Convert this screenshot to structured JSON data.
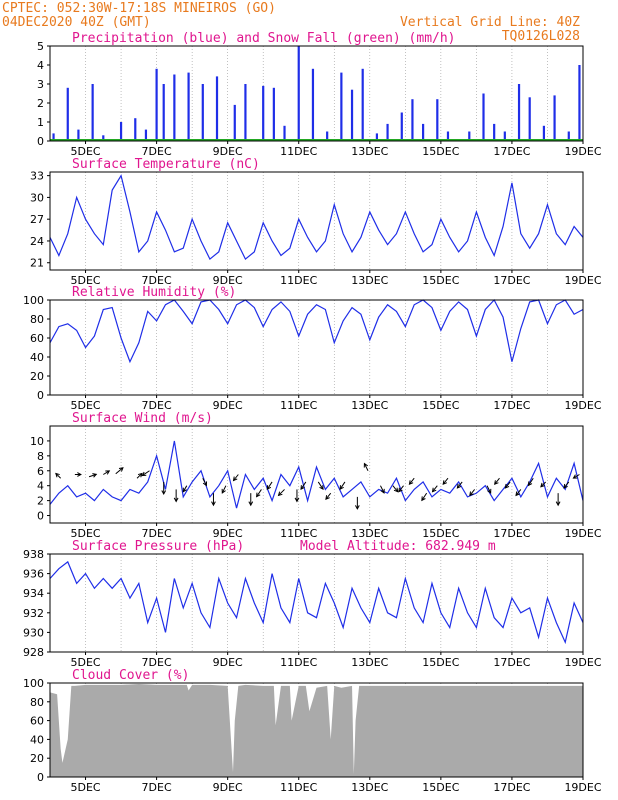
{
  "header": {
    "line1": "CPTEC:   052:30W-17:18S  MINEIROS (GO)",
    "line2": "04DEC2020 40Z (GMT)",
    "grid_note": "Vertical Grid Line: 40Z",
    "code": "TQ0126L028",
    "text_color": "#e87a1e",
    "title_color": "#e0168f"
  },
  "x_ticks": [
    "5DEC",
    "7DEC",
    "9DEC",
    "11DEC",
    "13DEC",
    "15DEC",
    "17DEC",
    "19DEC"
  ],
  "colors": {
    "blue": "#1f2ee8",
    "green": "#22a822",
    "gray": "#aaaaaa"
  },
  "chart_data": [
    {
      "type": "bar",
      "title": "Precipitation (blue) and Snow Fall (green) (mm/h)",
      "xlabel": "",
      "ylabel": "",
      "ylim": [
        0,
        5
      ],
      "yticks": [
        "0",
        "1",
        "2",
        "3",
        "4",
        "5"
      ],
      "x": [
        4.1,
        4.5,
        4.8,
        5.2,
        5.5,
        6.0,
        6.4,
        6.7,
        7.0,
        7.2,
        7.5,
        7.9,
        8.3,
        8.7,
        9.2,
        9.5,
        10.0,
        10.3,
        10.6,
        11.0,
        11.4,
        11.8,
        12.2,
        12.5,
        12.8,
        13.2,
        13.5,
        13.9,
        14.2,
        14.5,
        14.9,
        15.2,
        15.8,
        16.2,
        16.5,
        16.8,
        17.2,
        17.5,
        17.9,
        18.2,
        18.6,
        18.9
      ],
      "series": [
        {
          "name": "Precipitation",
          "values": [
            0.4,
            2.8,
            0.6,
            3.0,
            0.3,
            1.0,
            1.2,
            0.6,
            3.8,
            3.0,
            3.5,
            3.6,
            3.0,
            3.4,
            1.9,
            3.0,
            2.9,
            2.8,
            0.8,
            5.0,
            3.8,
            0.5,
            3.6,
            2.7,
            3.8,
            0.4,
            0.9,
            1.5,
            2.2,
            0.9,
            2.2,
            0.5,
            0.5,
            2.5,
            0.9,
            0.5,
            3.0,
            2.3,
            0.8,
            2.4,
            0.5,
            4.0
          ]
        },
        {
          "name": "Snow Fall",
          "values": [
            0,
            0,
            0,
            0,
            0,
            0,
            0,
            0,
            0,
            0,
            0,
            0,
            0,
            0,
            0,
            0,
            0,
            0,
            0,
            0,
            0,
            0,
            0,
            0,
            0,
            0,
            0,
            0,
            0,
            0,
            0,
            0,
            0,
            0,
            0,
            0,
            0,
            0,
            0,
            0,
            0,
            0
          ]
        }
      ]
    },
    {
      "type": "line",
      "title": "Surface Temperature (nC)",
      "xlabel": "",
      "ylabel": "",
      "ylim": [
        20,
        33.5
      ],
      "yticks": [
        "21",
        "24",
        "27",
        "30",
        "33"
      ],
      "x": [
        4.0,
        4.25,
        4.5,
        4.75,
        5.0,
        5.25,
        5.5,
        5.75,
        6.0,
        6.25,
        6.5,
        6.75,
        7.0,
        7.25,
        7.5,
        7.75,
        8.0,
        8.25,
        8.5,
        8.75,
        9.0,
        9.25,
        9.5,
        9.75,
        10.0,
        10.25,
        10.5,
        10.75,
        11.0,
        11.25,
        11.5,
        11.75,
        12.0,
        12.25,
        12.5,
        12.75,
        13.0,
        13.25,
        13.5,
        13.75,
        14.0,
        14.25,
        14.5,
        14.75,
        15.0,
        15.25,
        15.5,
        15.75,
        16.0,
        16.25,
        16.5,
        16.75,
        17.0,
        17.25,
        17.5,
        17.75,
        18.0,
        18.25,
        18.5,
        18.75,
        19.0
      ],
      "series": [
        {
          "name": "",
          "values": [
            24.5,
            22.0,
            25.0,
            30.0,
            27.0,
            25.0,
            23.5,
            31.0,
            33.0,
            28.0,
            22.5,
            24.0,
            28.0,
            25.5,
            22.5,
            23.0,
            27.0,
            24.0,
            21.5,
            22.5,
            26.5,
            24.0,
            21.5,
            22.5,
            26.5,
            24.0,
            22.0,
            23.0,
            27.0,
            24.5,
            22.5,
            24.0,
            29.0,
            25.0,
            22.5,
            24.5,
            28.0,
            25.5,
            23.5,
            25.0,
            28.0,
            25.0,
            22.5,
            23.5,
            27.0,
            24.5,
            22.5,
            24.0,
            28.0,
            24.5,
            22.0,
            26.0,
            32.0,
            25.0,
            23.0,
            25.0,
            29.0,
            25.0,
            23.5,
            26.0,
            24.5
          ]
        }
      ]
    },
    {
      "type": "line",
      "title": "Relative Humidity (%)",
      "xlabel": "",
      "ylabel": "",
      "ylim": [
        0,
        100
      ],
      "yticks": [
        "0",
        "20",
        "40",
        "60",
        "80",
        "100"
      ],
      "x": [
        4.0,
        4.25,
        4.5,
        4.75,
        5.0,
        5.25,
        5.5,
        5.75,
        6.0,
        6.25,
        6.5,
        6.75,
        7.0,
        7.25,
        7.5,
        7.75,
        8.0,
        8.25,
        8.5,
        8.75,
        9.0,
        9.25,
        9.5,
        9.75,
        10.0,
        10.25,
        10.5,
        10.75,
        11.0,
        11.25,
        11.5,
        11.75,
        12.0,
        12.25,
        12.5,
        12.75,
        13.0,
        13.25,
        13.5,
        13.75,
        14.0,
        14.25,
        14.5,
        14.75,
        15.0,
        15.25,
        15.5,
        15.75,
        16.0,
        16.25,
        16.5,
        16.75,
        17.0,
        17.25,
        17.5,
        17.75,
        18.0,
        18.25,
        18.5,
        18.75,
        19.0
      ],
      "series": [
        {
          "name": "",
          "values": [
            55,
            72,
            75,
            68,
            50,
            62,
            90,
            92,
            60,
            35,
            55,
            88,
            78,
            95,
            100,
            88,
            75,
            98,
            100,
            90,
            75,
            95,
            100,
            92,
            72,
            90,
            98,
            88,
            62,
            85,
            95,
            90,
            55,
            78,
            92,
            85,
            58,
            82,
            95,
            88,
            72,
            95,
            100,
            92,
            68,
            88,
            98,
            90,
            62,
            90,
            100,
            82,
            35,
            70,
            98,
            100,
            75,
            95,
            100,
            85,
            90
          ]
        }
      ]
    },
    {
      "type": "line",
      "title": "Surface Wind (m/s)",
      "xlabel": "",
      "ylabel": "",
      "ylim": [
        -1,
        12
      ],
      "yticks": [
        "0",
        "2",
        "4",
        "6",
        "8",
        "10"
      ],
      "x": [
        4.0,
        4.25,
        4.5,
        4.75,
        5.0,
        5.25,
        5.5,
        5.75,
        6.0,
        6.25,
        6.5,
        6.75,
        7.0,
        7.25,
        7.5,
        7.75,
        8.0,
        8.25,
        8.5,
        8.75,
        9.0,
        9.25,
        9.5,
        9.75,
        10.0,
        10.25,
        10.5,
        10.75,
        11.0,
        11.25,
        11.5,
        11.75,
        12.0,
        12.25,
        12.5,
        12.75,
        13.0,
        13.25,
        13.5,
        13.75,
        14.0,
        14.25,
        14.5,
        14.75,
        15.0,
        15.25,
        15.5,
        15.75,
        16.0,
        16.25,
        16.5,
        16.75,
        17.0,
        17.25,
        17.5,
        17.75,
        18.0,
        18.25,
        18.5,
        18.75,
        19.0
      ],
      "series": [
        {
          "name": "",
          "values": [
            1.5,
            3.0,
            4.0,
            2.5,
            3.0,
            2.0,
            3.5,
            2.5,
            2.0,
            3.5,
            3.0,
            4.5,
            8.0,
            3.5,
            10.0,
            2.5,
            4.5,
            6.0,
            2.5,
            4.0,
            6.0,
            1.0,
            5.5,
            3.5,
            5.0,
            2.0,
            5.5,
            4.0,
            6.5,
            2.0,
            6.5,
            3.5,
            5.0,
            2.5,
            3.5,
            4.5,
            2.5,
            3.5,
            3.0,
            5.0,
            2.0,
            3.5,
            4.5,
            2.5,
            3.5,
            3.0,
            4.5,
            2.5,
            3.0,
            4.0,
            2.0,
            3.5,
            5.0,
            2.5,
            4.5,
            7.0,
            2.5,
            5.0,
            3.5,
            7.0,
            2.0
          ]
        }
      ],
      "arrows": {
        "x": [
          4.3,
          4.7,
          5.1,
          5.5,
          5.85,
          6.45,
          6.8,
          7.2,
          7.55,
          7.85,
          8.3,
          8.6,
          8.95,
          9.3,
          9.65,
          9.95,
          10.25,
          10.6,
          10.95,
          11.2,
          11.55,
          11.9,
          12.3,
          12.65,
          12.95,
          13.3,
          13.65,
          13.95,
          14.25,
          14.6,
          14.9,
          15.2,
          15.6,
          15.95,
          16.3,
          16.65,
          16.95,
          17.25,
          17.6,
          17.95,
          18.3,
          18.6,
          18.9
        ],
        "y": [
          5.0,
          5.5,
          5.2,
          5.5,
          5.6,
          5.0,
          6.0,
          4.5,
          3.5,
          4.0,
          5.0,
          3.0,
          4.0,
          5.5,
          3.0,
          3.5,
          4.5,
          3.5,
          3.5,
          4.5,
          4.5,
          3.0,
          4.5,
          2.5,
          6.0,
          4.0,
          4.0,
          4.0,
          5.0,
          3.0,
          4.0,
          5.0,
          4.5,
          3.5,
          4.0,
          5.0,
          4.5,
          3.5,
          5.0,
          4.5,
          3.0,
          4.5,
          5.5
        ],
        "u": [
          -0.4,
          0.5,
          0.6,
          0.5,
          0.6,
          0.4,
          -0.6,
          0,
          0,
          -0.3,
          0.3,
          0,
          -0.3,
          -0.4,
          0,
          -0.4,
          -0.4,
          -0.5,
          0,
          -0.4,
          0.4,
          -0.4,
          -0.4,
          0,
          -0.3,
          0.3,
          0.4,
          -0.4,
          -0.4,
          -0.4,
          -0.4,
          -0.4,
          -0.4,
          -0.4,
          0.3,
          -0.4,
          -0.4,
          -0.4,
          -0.4,
          -0.4,
          0,
          -0.4,
          -0.5
        ],
        "v": [
          0.4,
          0,
          0.2,
          0.3,
          0.5,
          0.4,
          -0.4,
          -1.0,
          -1.0,
          -0.5,
          -0.6,
          -1.0,
          -0.6,
          -0.5,
          -1.0,
          -0.6,
          -0.6,
          -0.5,
          -1.0,
          -0.6,
          -0.6,
          -0.5,
          -0.6,
          -1.0,
          0.6,
          -0.6,
          -0.5,
          -0.5,
          -0.5,
          -0.6,
          -0.5,
          -0.5,
          -0.5,
          -0.5,
          -0.6,
          -0.5,
          -0.5,
          -0.5,
          -0.6,
          -0.4,
          -1.0,
          -0.5,
          -0.3
        ]
      }
    },
    {
      "type": "line",
      "title": "Surface Pressure (hPa)",
      "annotation": "Model Altitude: 682.949 m",
      "xlabel": "",
      "ylabel": "",
      "ylim": [
        928,
        938
      ],
      "yticks": [
        "928",
        "930",
        "932",
        "934",
        "936",
        "938"
      ],
      "x": [
        4.0,
        4.25,
        4.5,
        4.75,
        5.0,
        5.25,
        5.5,
        5.75,
        6.0,
        6.25,
        6.5,
        6.75,
        7.0,
        7.25,
        7.5,
        7.75,
        8.0,
        8.25,
        8.5,
        8.75,
        9.0,
        9.25,
        9.5,
        9.75,
        10.0,
        10.25,
        10.5,
        10.75,
        11.0,
        11.25,
        11.5,
        11.75,
        12.0,
        12.25,
        12.5,
        12.75,
        13.0,
        13.25,
        13.5,
        13.75,
        14.0,
        14.25,
        14.5,
        14.75,
        15.0,
        15.25,
        15.5,
        15.75,
        16.0,
        16.25,
        16.5,
        16.75,
        17.0,
        17.25,
        17.5,
        17.75,
        18.0,
        18.25,
        18.5,
        18.75,
        19.0
      ],
      "series": [
        {
          "name": "",
          "values": [
            935.5,
            936.5,
            937.2,
            935.0,
            936.0,
            934.5,
            935.5,
            934.5,
            935.5,
            933.5,
            935.0,
            931.0,
            933.5,
            930.0,
            935.5,
            932.5,
            935.0,
            932.0,
            930.5,
            935.5,
            933.0,
            931.5,
            935.5,
            933.0,
            931.0,
            936.0,
            932.5,
            931.0,
            935.5,
            932.0,
            931.5,
            935.0,
            933.0,
            930.5,
            934.5,
            932.5,
            931.0,
            934.5,
            932.0,
            931.5,
            935.5,
            932.5,
            931.0,
            935.0,
            932.0,
            930.5,
            934.5,
            932.0,
            930.5,
            934.5,
            931.5,
            930.5,
            933.5,
            932.0,
            932.5,
            929.5,
            933.5,
            931.0,
            929.0,
            933.0,
            931.0
          ]
        }
      ]
    },
    {
      "type": "area",
      "title": "Cloud Cover (%)",
      "xlabel": "",
      "ylabel": "",
      "ylim": [
        0,
        100
      ],
      "yticks": [
        "0",
        "20",
        "40",
        "60",
        "80",
        "100"
      ],
      "x": [
        4.0,
        4.2,
        4.3,
        4.35,
        4.5,
        4.6,
        4.7,
        5.0,
        5.5,
        6.0,
        6.5,
        7.0,
        7.5,
        7.85,
        7.9,
        8.0,
        8.5,
        9.0,
        9.15,
        9.2,
        9.3,
        9.5,
        10.0,
        10.3,
        10.35,
        10.5,
        10.75,
        10.8,
        11.0,
        11.2,
        11.3,
        11.5,
        11.8,
        11.9,
        12.0,
        12.2,
        12.5,
        12.55,
        12.6,
        12.7,
        13.0,
        13.5,
        14.0,
        14.5,
        15.0,
        15.5,
        16.0,
        16.5,
        17.0,
        17.5,
        18.0,
        18.5,
        19.0
      ],
      "series": [
        {
          "name": "",
          "values": [
            90,
            88,
            30,
            15,
            40,
            97,
            97,
            98,
            98,
            98,
            99,
            98,
            98,
            98,
            92,
            98,
            98,
            97,
            5,
            60,
            97,
            98,
            97,
            97,
            55,
            97,
            97,
            60,
            97,
            97,
            70,
            95,
            97,
            40,
            97,
            95,
            97,
            3,
            60,
            97,
            97,
            97,
            97,
            97,
            97,
            97,
            97,
            97,
            97,
            97,
            97,
            97,
            97
          ]
        }
      ]
    }
  ]
}
